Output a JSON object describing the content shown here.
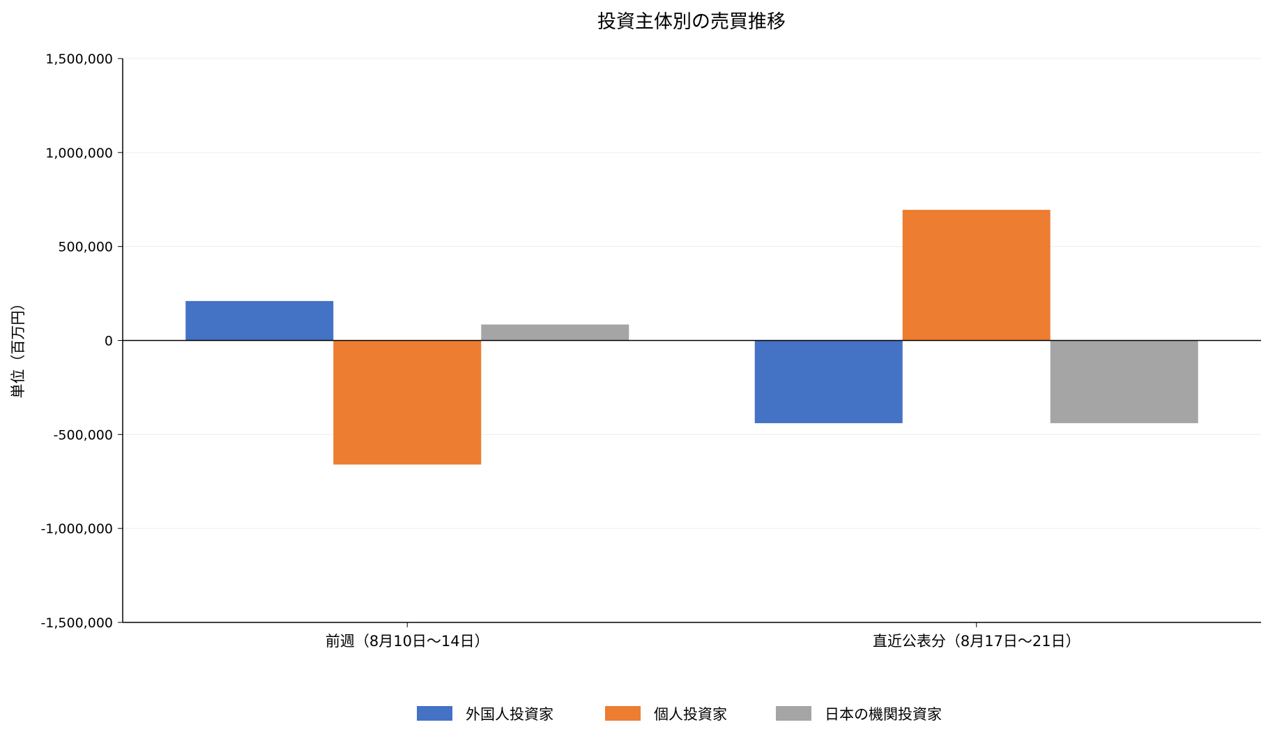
{
  "chart_data": {
    "type": "bar",
    "title": "投資主体別の売買推移",
    "ylabel": "単位（百万円）",
    "xlabel": "",
    "categories": [
      "前週（8月10日〜14日）",
      "直近公表分（8月17日〜21日）"
    ],
    "series": [
      {
        "name": "外国人投資家",
        "color": "#4472C4",
        "values": [
          210000,
          -440000
        ]
      },
      {
        "name": "個人投資家",
        "color": "#ED7D31",
        "values": [
          -660000,
          695000
        ]
      },
      {
        "name": "日本の機関投資家",
        "color": "#A5A5A5",
        "values": [
          85000,
          -440000
        ]
      }
    ],
    "ylim": [
      -1500000,
      1500000
    ],
    "yticks": [
      -1500000,
      -1000000,
      -500000,
      0,
      500000,
      1000000,
      1500000
    ],
    "ytick_labels": [
      "-1,500,000",
      "-1,000,000",
      "-500,000",
      "0",
      "500,000",
      "1,000,000",
      "1,500,000"
    ],
    "grid": true,
    "legend_position": "bottom"
  }
}
